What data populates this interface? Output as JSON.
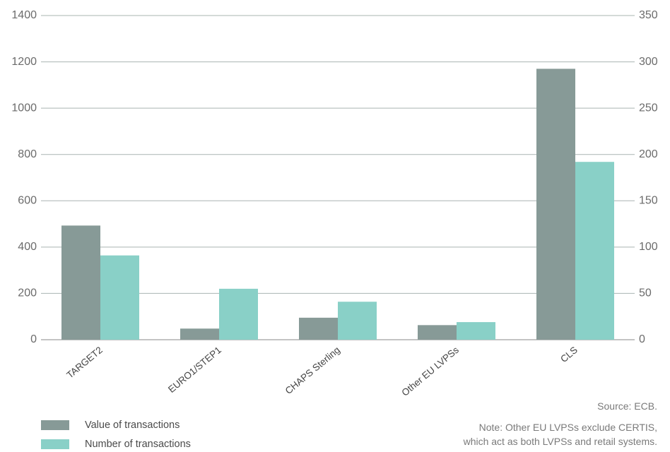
{
  "chart_data": {
    "type": "bar",
    "categories": [
      "TARGET2",
      "EURO1/STEP1",
      "CHAPS Sterling",
      "Other EU LVPSs",
      "CLS"
    ],
    "series": [
      {
        "name": "Value of transactions",
        "axis": "left",
        "color": "#879a97",
        "values": [
          493,
          48,
          95,
          63,
          1170
        ]
      },
      {
        "name": "Number of transactions",
        "axis": "right",
        "color": "#89d0c7",
        "values": [
          91,
          55,
          41,
          19,
          192
        ]
      }
    ],
    "y_left": {
      "lim": [
        0,
        1400
      ],
      "ticks": [
        0,
        200,
        400,
        600,
        800,
        1000,
        1200,
        1400
      ]
    },
    "y_right": {
      "lim": [
        0,
        350
      ],
      "ticks": [
        0,
        50,
        100,
        150,
        200,
        250,
        300,
        350
      ]
    },
    "grid": true,
    "legend": "bottom-left"
  },
  "notes": {
    "source": "Source: ECB.",
    "note_line1": "Note: Other EU LVPSs exclude CERTIS,",
    "note_line2": "which act as both LVPSs and retail systems."
  },
  "colors": {
    "grid": "#aab4b2",
    "axis": "#888888"
  }
}
